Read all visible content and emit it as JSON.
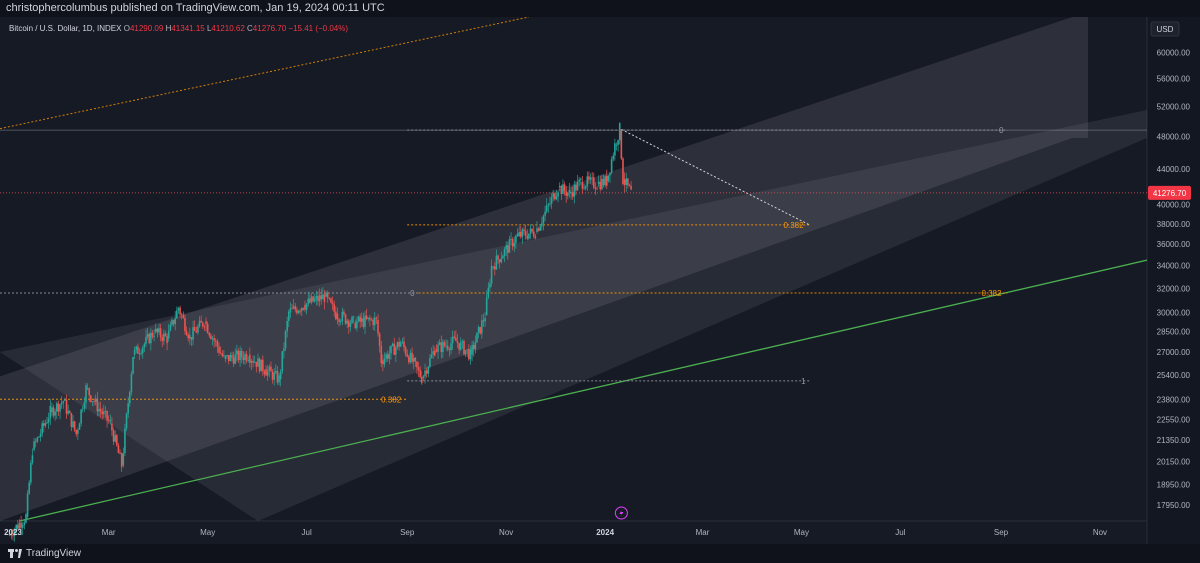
{
  "header": {
    "published_line": "christophercolumbus published on TradingView.com, Jan 19, 2024 00:11 UTC"
  },
  "legend": {
    "symbol": "Bitcoin / U.S. Dollar, 1D, INDEX",
    "open_key": "O",
    "open": "41290.09",
    "high_key": "H",
    "high": "41341.15",
    "low_key": "L",
    "low": "41210.62",
    "close_key": "C",
    "close": "41276.70",
    "change": "−15.41 (−0.04%)"
  },
  "footer": {
    "brand": "TradingView"
  },
  "colors": {
    "background": "#161a25",
    "channel_fill": "#9598a1",
    "bull": "#26a69a",
    "bear": "#ef5350",
    "fib_label": "#ff9800",
    "trendline": "#4caf50",
    "price_label_bg": "#f23645"
  },
  "chart_data": {
    "type": "candlestick",
    "currency_badge": "USD",
    "y_axis": {
      "scale": "log",
      "range": [
        17200,
        66000
      ],
      "tick_labels": [
        "60000.00",
        "56000.00",
        "52000.00",
        "48000.00",
        "44000.00",
        "40000.00",
        "38000.00",
        "36000.00",
        "34000.00",
        "32000.00",
        "30000.00",
        "28500.00",
        "27000.00",
        "25400.00",
        "23800.00",
        "22550.00",
        "21350.00",
        "20150.00",
        "18950.00",
        "17950.00"
      ]
    },
    "x_axis": {
      "range": [
        "2022-12-24",
        "2024-11-30"
      ],
      "tick_labels": [
        {
          "label": "2023",
          "date": "2023-01-01",
          "bold": true
        },
        {
          "label": "Mar",
          "date": "2023-03-01"
        },
        {
          "label": "May",
          "date": "2023-05-01"
        },
        {
          "label": "Jul",
          "date": "2023-07-01"
        },
        {
          "label": "Sep",
          "date": "2023-09-01"
        },
        {
          "label": "Nov",
          "date": "2023-11-01"
        },
        {
          "label": "2024",
          "date": "2024-01-01",
          "bold": true
        },
        {
          "label": "Mar",
          "date": "2024-03-01"
        },
        {
          "label": "May",
          "date": "2024-05-01"
        },
        {
          "label": "Jul",
          "date": "2024-07-01"
        },
        {
          "label": "Sep",
          "date": "2024-09-01"
        },
        {
          "label": "Nov",
          "date": "2024-11-01"
        }
      ]
    },
    "current_price": 41276.7,
    "current_price_label": "41276.70",
    "price_path": [
      [
        "2022-12-30",
        16550
      ],
      [
        "2023-01-10",
        17400
      ],
      [
        "2023-01-14",
        20800
      ],
      [
        "2023-01-25",
        23000
      ],
      [
        "2023-02-02",
        23700
      ],
      [
        "2023-02-10",
        21700
      ],
      [
        "2023-02-16",
        24500
      ],
      [
        "2023-02-24",
        23200
      ],
      [
        "2023-03-03",
        22300
      ],
      [
        "2023-03-10",
        19950
      ],
      [
        "2023-03-17",
        26800
      ],
      [
        "2023-03-24",
        27600
      ],
      [
        "2023-03-30",
        28500
      ],
      [
        "2023-04-07",
        28000
      ],
      [
        "2023-04-14",
        30400
      ],
      [
        "2023-04-21",
        28100
      ],
      [
        "2023-04-30",
        29300
      ],
      [
        "2023-05-12",
        26500
      ],
      [
        "2023-05-27",
        26800
      ],
      [
        "2023-06-06",
        25800
      ],
      [
        "2023-06-15",
        25100
      ],
      [
        "2023-06-21",
        30000
      ],
      [
        "2023-06-30",
        30600
      ],
      [
        "2023-07-13",
        31300
      ],
      [
        "2023-07-20",
        29900
      ],
      [
        "2023-07-31",
        29200
      ],
      [
        "2023-08-14",
        29400
      ],
      [
        "2023-08-17",
        26400
      ],
      [
        "2023-08-29",
        27700
      ],
      [
        "2023-09-11",
        25200
      ],
      [
        "2023-09-19",
        27200
      ],
      [
        "2023-10-02",
        27800
      ],
      [
        "2023-10-11",
        26800
      ],
      [
        "2023-10-20",
        29800
      ],
      [
        "2023-10-24",
        33900
      ],
      [
        "2023-11-09",
        36800
      ],
      [
        "2023-11-20",
        37200
      ],
      [
        "2023-12-04",
        41900
      ],
      [
        "2023-12-11",
        41200
      ],
      [
        "2023-12-18",
        42500
      ],
      [
        "2023-12-28",
        42300
      ],
      [
        "2024-01-03",
        42600
      ],
      [
        "2024-01-08",
        46900
      ],
      [
        "2024-01-11",
        48900
      ],
      [
        "2024-01-13",
        42800
      ],
      [
        "2024-01-18",
        41276.7
      ]
    ],
    "drawings": {
      "channel_outer": {
        "start": [
          "2022-12-24",
          25300
        ],
        "end": [
          "2024-10-15",
          66000
        ],
        "lower_start": [
          "2022-12-24",
          17200
        ],
        "lower_end": [
          "2024-10-15",
          47800
        ]
      },
      "channel_inner": {
        "start": [
          "2022-12-24",
          27000
        ],
        "end": [
          "2024-11-30",
          51500
        ],
        "lower_start": [
          "2023-06-01",
          17200
        ],
        "lower_end": [
          "2024-11-30",
          47800
        ]
      },
      "green_trendline": {
        "start": [
          "2023-01-05",
          17200
        ],
        "end": [
          "2024-11-30",
          34500
        ]
      },
      "orange_trendline": {
        "start": [
          "2022-12-24",
          49000
        ],
        "end": [
          "2023-11-15",
          66000
        ]
      },
      "fib_levels": [
        {
          "label": "0",
          "price": 48800,
          "from": "2023-09-01",
          "to": "2024-09-05"
        },
        {
          "label": "0.382",
          "price": 37900,
          "from": "2023-09-01",
          "to": "2024-05-06"
        },
        {
          "label": "0",
          "price": 31600,
          "from": "2022-12-24",
          "to": "2023-09-08"
        },
        {
          "label": "0.382",
          "price": 31600,
          "from": "2023-09-08",
          "to": "2024-09-05"
        },
        {
          "label": "0.382",
          "price": 23800,
          "from": "2022-12-24",
          "to": "2023-09-01"
        },
        {
          "label": "1",
          "price": 25000,
          "from": "2023-09-01",
          "to": "2024-05-06"
        }
      ],
      "projection": {
        "from": [
          "2024-01-11",
          48900
        ],
        "to": [
          "2024-05-06",
          37900
        ]
      },
      "ath_line": {
        "price": 48800
      }
    }
  }
}
